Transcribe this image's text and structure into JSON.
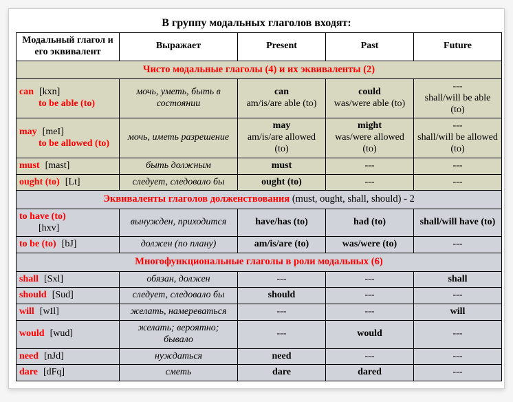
{
  "colors": {
    "accent": "#ff0000",
    "section1_bg": "#d8d8c0",
    "section2_bg": "#d0d3da",
    "border": "#000000",
    "page_bg": "#ffffff"
  },
  "title": "В группу модальных глаголов входят:",
  "columns": {
    "verb": "Модальный глагол и его эквивалент",
    "expr": "Выражает",
    "present": "Present",
    "past": "Past",
    "future": "Future"
  },
  "sections": [
    {
      "heading": "Чисто модальные глаголы (4) и их эквиваленты (2)",
      "suffix": "",
      "bg": "#d8d8c0",
      "row_class": "bg-olive",
      "rows": [
        {
          "verb": "can",
          "phon": "[kxn]",
          "verb2": "to be able (to)",
          "expr": "мочь, уметь, быть в состоянии",
          "present": "can",
          "present_sub": "am/is/are able (to)",
          "past": "could",
          "past_sub": "was/were able (to)",
          "future": "---",
          "future_sub": "shall/will be able (to)"
        },
        {
          "verb": "may",
          "phon": "[meI]",
          "verb2": "to be allowed (to)",
          "expr": "мочь, иметь разрешение",
          "present": "may",
          "present_sub": "am/is/are allowed (to)",
          "past": "might",
          "past_sub": "was/were allowed (to)",
          "future": "---",
          "future_sub": "shall/will be allowed (to)"
        },
        {
          "verb": "must",
          "phon": "[mast]",
          "verb2": "",
          "expr": "быть должным",
          "present": "must",
          "past": "---",
          "future": "---"
        },
        {
          "verb": "ought (to)",
          "phon": "[Lt]",
          "verb2": "",
          "expr": "следует, следовало бы",
          "present": "ought (to)",
          "past": "---",
          "future": "---"
        }
      ]
    },
    {
      "heading": "Эквиваленты глаголов долженствования",
      "suffix": " (must, ought, shall, should) - 2",
      "bg": "#d0d3da",
      "row_class": "bg-grey",
      "rows": [
        {
          "verb": "to have (to)",
          "phon": "",
          "verb2_phon": "[hxv]",
          "expr": "вынужден, приходится",
          "present": "have/has (to)",
          "past": "had (to)",
          "future": "shall/will have (to)"
        },
        {
          "verb": "to be (to)",
          "phon": "[bJ]",
          "verb2": "",
          "expr": "должен (по плану)",
          "present": "am/is/are (to)",
          "past": "was/were (to)",
          "future": "---"
        }
      ]
    },
    {
      "heading": "Многофункциональные глаголы в роли модальных (6)",
      "suffix": "",
      "bg": "#d0d3da",
      "row_class": "bg-grey",
      "rows": [
        {
          "verb": "shall",
          "phon": "[Sxl]",
          "expr": "обязан, должен",
          "present": "---",
          "past": "---",
          "future": "shall"
        },
        {
          "verb": "should",
          "phon": "[Sud]",
          "expr": "следует, следовало бы",
          "present": "should",
          "past": "---",
          "future": "---"
        },
        {
          "verb": "will",
          "phon": "[wIl]",
          "expr": "желать, намереваться",
          "present": "---",
          "past": "---",
          "future": "will"
        },
        {
          "verb": "would",
          "phon": "[wud]",
          "expr": "желать; вероятно; бывало",
          "present": "---",
          "past": "would",
          "future": "---"
        },
        {
          "verb": "need",
          "phon": "[nJd]",
          "expr": "нуждаться",
          "present": "need",
          "past": "---",
          "future": "---"
        },
        {
          "verb": "dare",
          "phon": "[dFq]",
          "expr": "сметь",
          "present": "dare",
          "past": "dared",
          "future": "---"
        }
      ]
    }
  ]
}
